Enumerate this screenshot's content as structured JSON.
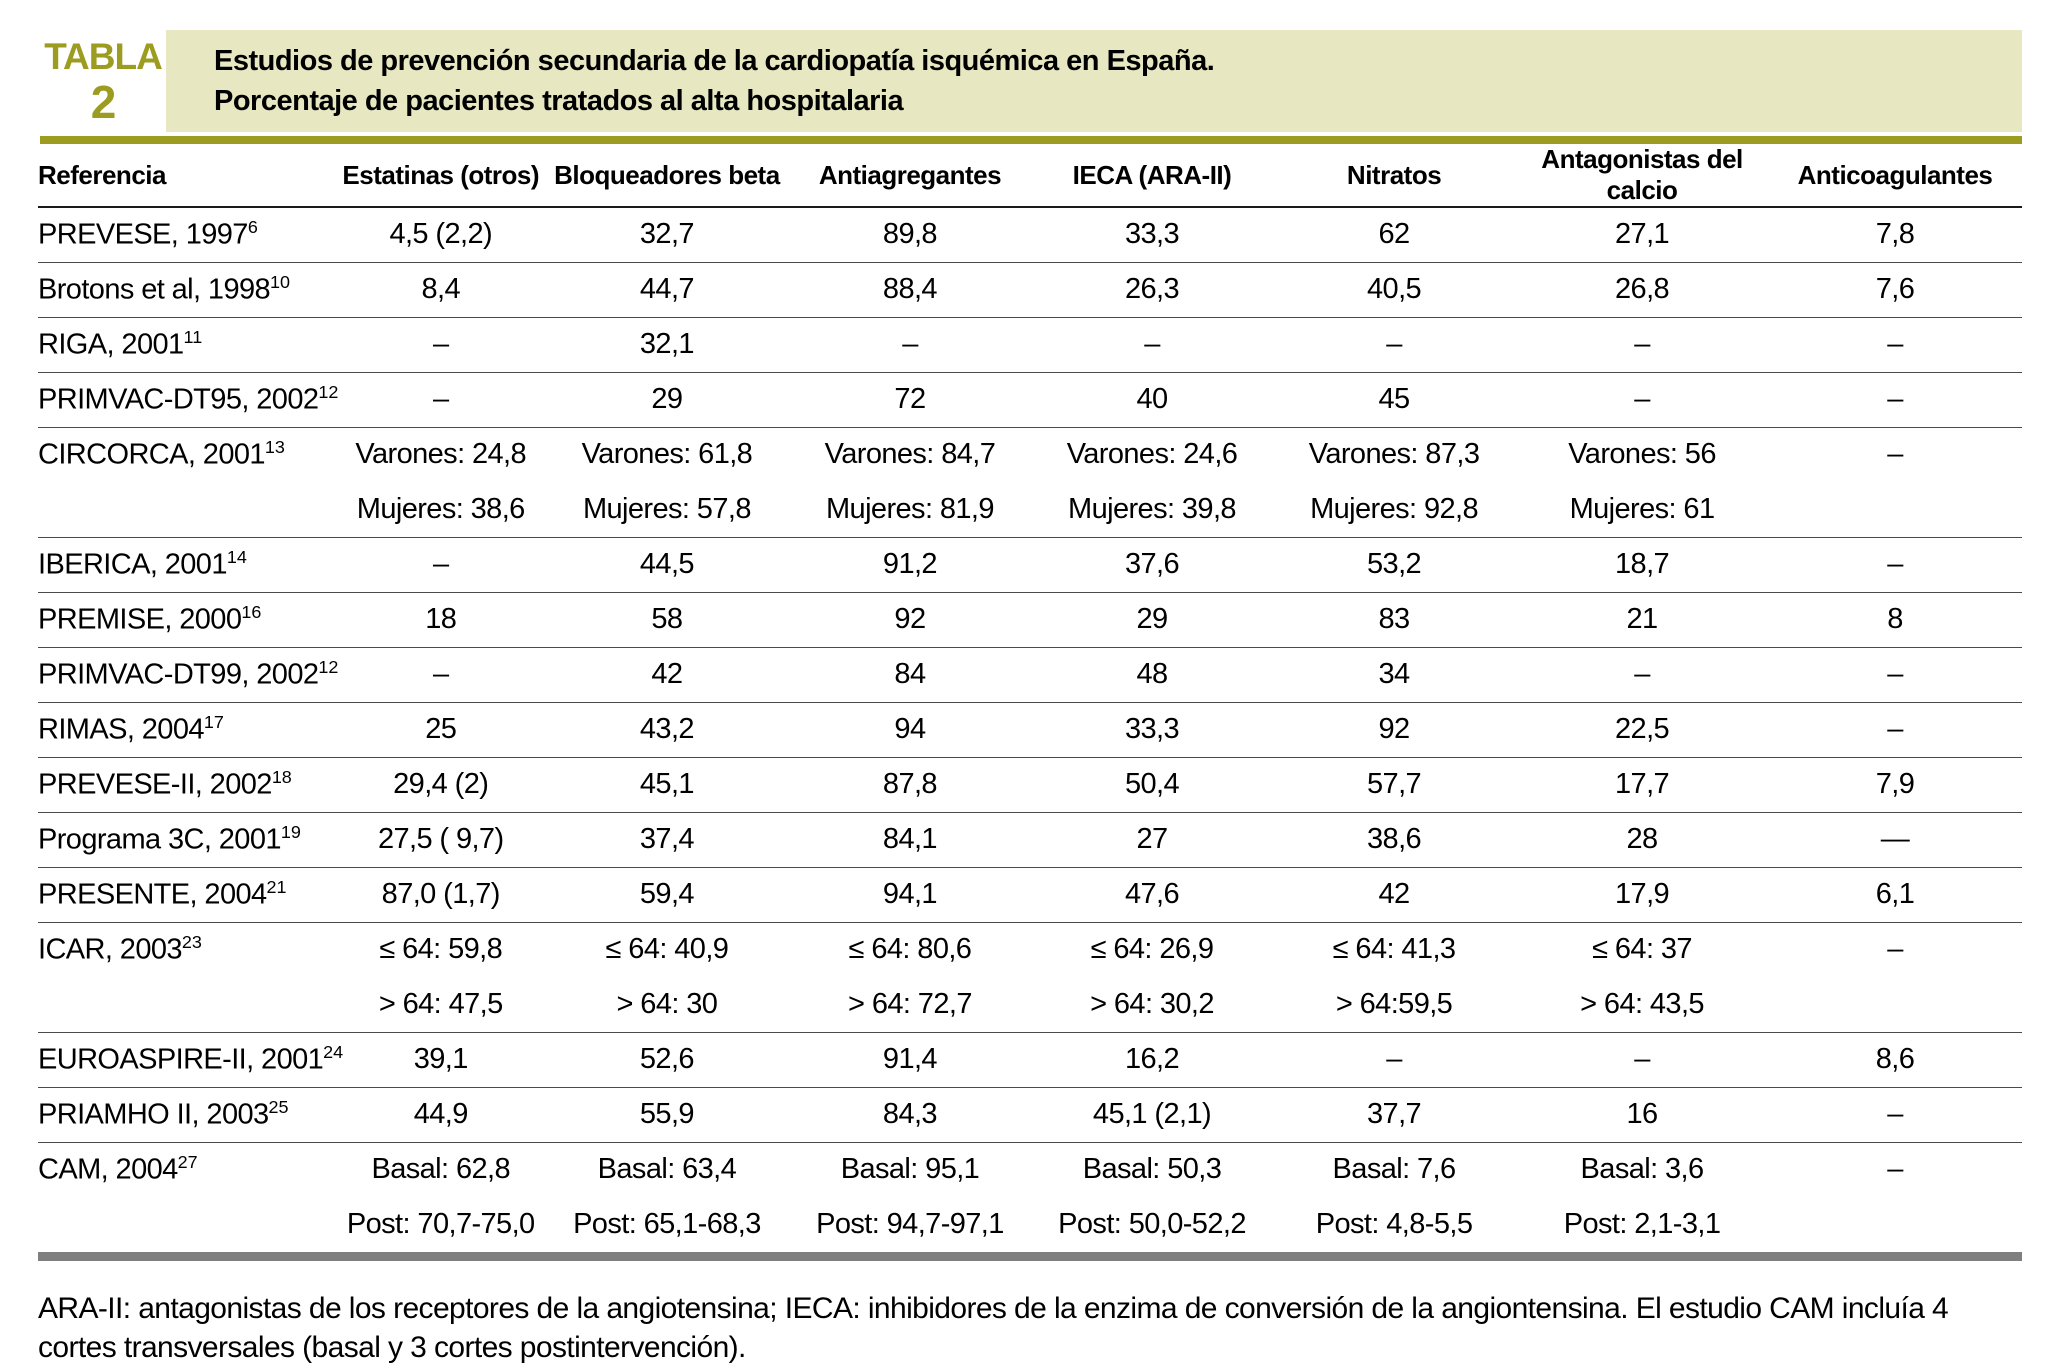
{
  "label": {
    "word": "TABLA",
    "number": "2"
  },
  "title": {
    "line1": "Estudios de prevención secundaria de la cardiopatía isquémica en España.",
    "line2": "Porcentaje de pacientes tratados al alta hospitalaria"
  },
  "table": {
    "columns": [
      "Referencia",
      "Estatinas (otros)",
      "Bloqueadores beta",
      "Antiagregantes",
      "IECA (ARA-II)",
      "Nitratos",
      "Antagonistas del calcio",
      "Anticoagulantes"
    ],
    "rows": [
      {
        "ref": "PREVESE, 1997",
        "sup": "6",
        "lines": [
          [
            "4,5 (2,2)",
            "32,7",
            "89,8",
            "33,3",
            "62",
            "27,1",
            "7,8"
          ]
        ]
      },
      {
        "ref": "Brotons et al, 1998",
        "sup": "10",
        "lines": [
          [
            "8,4",
            "44,7",
            "88,4",
            "26,3",
            "40,5",
            "26,8",
            "7,6"
          ]
        ]
      },
      {
        "ref": "RIGA, 2001",
        "sup": "11",
        "lines": [
          [
            "–",
            "32,1",
            "–",
            "–",
            "–",
            "–",
            "–"
          ]
        ]
      },
      {
        "ref": "PRIMVAC-DT95, 2002",
        "sup": "12",
        "lines": [
          [
            "–",
            "29",
            "72",
            "40",
            "45",
            "–",
            "–"
          ]
        ]
      },
      {
        "ref": "CIRCORCA, 2001",
        "sup": "13",
        "lines": [
          [
            "Varones: 24,8",
            "Varones: 61,8",
            "Varones: 84,7",
            "Varones: 24,6",
            "Varones: 87,3",
            "Varones: 56",
            "–"
          ],
          [
            "Mujeres: 38,6",
            "Mujeres: 57,8",
            "Mujeres: 81,9",
            "Mujeres: 39,8",
            "Mujeres: 92,8",
            "Mujeres: 61",
            ""
          ]
        ]
      },
      {
        "ref": "IBERICA, 2001",
        "sup": "14",
        "lines": [
          [
            "–",
            "44,5",
            "91,2",
            "37,6",
            "53,2",
            "18,7",
            "–"
          ]
        ]
      },
      {
        "ref": "PREMISE, 2000",
        "sup": "16",
        "lines": [
          [
            "18",
            "58",
            "92",
            "29",
            "83",
            "21",
            "8"
          ]
        ]
      },
      {
        "ref": "PRIMVAC-DT99, 2002",
        "sup": "12",
        "lines": [
          [
            "–",
            "42",
            "84",
            "48",
            "34",
            "–",
            "–"
          ]
        ]
      },
      {
        "ref": "RIMAS, 2004",
        "sup": "17",
        "lines": [
          [
            "25",
            "43,2",
            "94",
            "33,3",
            "92",
            "22,5",
            "–"
          ]
        ]
      },
      {
        "ref": "PREVESE-II, 2002",
        "sup": "18",
        "lines": [
          [
            "29,4 (2)",
            "45,1",
            "87,8",
            "50,4",
            "57,7",
            "17,7",
            "7,9"
          ]
        ]
      },
      {
        "ref": "Programa 3C, 2001",
        "sup": "19",
        "lines": [
          [
            "27,5 ( 9,7)",
            "37,4",
            "84,1",
            "27",
            "38,6",
            "28",
            "—"
          ]
        ]
      },
      {
        "ref": "PRESENTE, 2004",
        "sup": "21",
        "lines": [
          [
            "87,0 (1,7)",
            "59,4",
            "94,1",
            "47,6",
            "42",
            "17,9",
            "6,1"
          ]
        ]
      },
      {
        "ref": "ICAR, 2003",
        "sup": "23",
        "lines": [
          [
            "≤ 64: 59,8",
            "≤ 64: 40,9",
            "≤ 64: 80,6",
            "≤ 64: 26,9",
            "≤ 64: 41,3",
            "≤ 64: 37",
            "–"
          ],
          [
            "> 64: 47,5",
            "> 64: 30",
            "> 64: 72,7",
            "> 64: 30,2",
            "> 64:59,5",
            "> 64: 43,5",
            ""
          ]
        ]
      },
      {
        "ref": "EUROASPIRE-II, 2001",
        "sup": "24",
        "lines": [
          [
            "39,1",
            "52,6",
            "91,4",
            "16,2",
            "–",
            "–",
            "8,6"
          ]
        ]
      },
      {
        "ref": "PRIAMHO II, 2003",
        "sup": "25",
        "lines": [
          [
            "44,9",
            "55,9",
            "84,3",
            "45,1 (2,1)",
            "37,7",
            "16",
            "–"
          ]
        ]
      },
      {
        "ref": "CAM, 2004",
        "sup": "27",
        "lines": [
          [
            "Basal: 62,8",
            "Basal: 63,4",
            "Basal: 95,1",
            "Basal: 50,3",
            "Basal: 7,6",
            "Basal: 3,6",
            "–"
          ],
          [
            "Post: 70,7-75,0",
            "Post: 65,1-68,3",
            "Post: 94,7-97,1",
            "Post: 50,0-52,2",
            "Post: 4,8-5,5",
            "Post: 2,1-3,1",
            ""
          ]
        ]
      }
    ]
  },
  "footnote": "ARA-II: antagonistas de los receptores de la angiotensina; IECA: inhibidores de la enzima de conversión de la angiontensina. El estudio CAM incluía 4 cortes transversales (basal y 3 cortes postintervención).",
  "colors": {
    "accent": "#9c9c20",
    "band": "#e7e7c1",
    "bottom_rule": "#7f7f7f"
  }
}
